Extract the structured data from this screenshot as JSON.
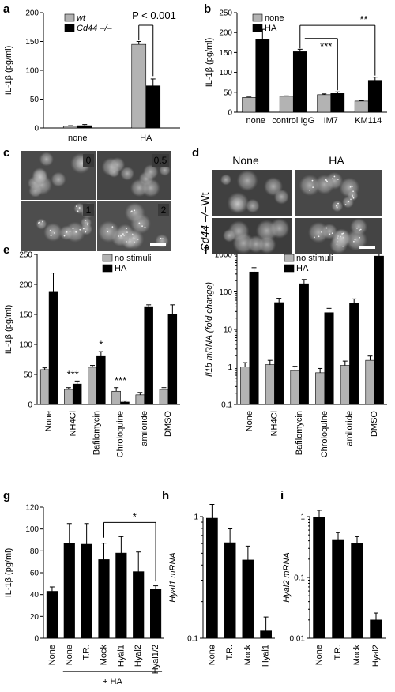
{
  "figure": {
    "panels": {
      "a": "a",
      "b": "b",
      "c": "c",
      "d": "d",
      "e": "e",
      "f": "f",
      "g": "g",
      "h": "h",
      "i": "i"
    }
  },
  "colors": {
    "gray": "#b3b3b3",
    "black": "#000000"
  },
  "chart_data": [
    {
      "panel": "a",
      "type": "bar",
      "categories": [
        "none",
        "HA"
      ],
      "series": [
        {
          "name": "wt",
          "values": [
            3,
            145
          ],
          "errors": [
            1,
            5
          ]
        },
        {
          "name": "Cd44 –/–",
          "values": [
            4,
            73
          ],
          "errors": [
            2,
            12
          ]
        }
      ],
      "ylabel": "IL-1β (pg/ml)",
      "ylim": [
        0,
        200
      ],
      "yticks": [
        "0",
        "50",
        "100",
        "150",
        "200"
      ],
      "annotation": "P < 0.001"
    },
    {
      "panel": "b",
      "type": "bar",
      "categories": [
        "none",
        "control IgG",
        "IM7",
        "KM114"
      ],
      "series": [
        {
          "name": "none",
          "values": [
            37,
            40,
            44,
            28
          ],
          "errors": [
            1,
            1,
            2,
            1
          ]
        },
        {
          "name": "HA",
          "values": [
            183,
            152,
            47,
            80
          ],
          "errors": [
            25,
            6,
            4,
            8
          ]
        }
      ],
      "ylabel": "IL-1β (pg/ml)",
      "ylim": [
        0,
        250
      ],
      "yticks": [
        "0",
        "50",
        "100",
        "150",
        "200",
        "250"
      ],
      "annotations": [
        "***",
        "**"
      ]
    },
    {
      "panel": "e",
      "type": "bar",
      "categories": [
        "None",
        "NH4Cl",
        "Bafilomycin",
        "Chroloquine",
        "amiloride",
        "DMSO"
      ],
      "series": [
        {
          "name": "no stimuli",
          "values": [
            58,
            25,
            62,
            22,
            16,
            25
          ],
          "errors": [
            3,
            3,
            3,
            6,
            4,
            3
          ]
        },
        {
          "name": "HA",
          "values": [
            187,
            34,
            80,
            4,
            163,
            150
          ],
          "errors": [
            32,
            5,
            8,
            2,
            3,
            16
          ]
        }
      ],
      "ylabel": "IL-1β (pg/ml)",
      "ylim": [
        0,
        250
      ],
      "yticks": [
        "0",
        "50",
        "100",
        "150",
        "200",
        "250"
      ],
      "annotations": [
        "***",
        "*",
        "***"
      ]
    },
    {
      "panel": "f",
      "type": "bar",
      "scale": "log",
      "categories": [
        "None",
        "NH4Cl",
        "Bafilomycin",
        "Chroloquine",
        "amiloride",
        "DMSO"
      ],
      "series": [
        {
          "name": "no stimuli",
          "values": [
            1.0,
            1.15,
            0.8,
            0.7,
            1.1,
            1.5
          ]
        },
        {
          "name": "HA",
          "values": [
            340,
            52,
            165,
            28,
            50,
            900
          ]
        }
      ],
      "ylabel": "Il1b mRNA (fold change)",
      "ylim": [
        0.1,
        1000
      ],
      "yticks": [
        "0.1",
        "1",
        "10",
        "100",
        "1000"
      ]
    },
    {
      "panel": "g",
      "type": "bar",
      "categories": [
        "None",
        "None",
        "T.R.",
        "Mock",
        "Hyal1",
        "Hyal2",
        "Hyal1/2"
      ],
      "series": [
        {
          "values": [
            43,
            87,
            86,
            72,
            78,
            61,
            45
          ],
          "errors": [
            4,
            18,
            19,
            15,
            15,
            18,
            3
          ]
        }
      ],
      "ylabel": "IL-1β (pg/ml)",
      "ylim": [
        0,
        120
      ],
      "yticks": [
        "0",
        "20",
        "40",
        "60",
        "80",
        "100",
        "120"
      ],
      "group_label": "+ HA",
      "annotation": "*"
    },
    {
      "panel": "h",
      "type": "bar",
      "scale": "log",
      "categories": [
        "None",
        "T.R.",
        "Mock",
        "Hyal1"
      ],
      "series": [
        {
          "values": [
            0.97,
            0.61,
            0.44,
            0.115
          ]
        }
      ],
      "ylabel": "Hyal1 mRNA",
      "ylim": [
        0.1,
        1
      ],
      "yticks": [
        "0.1",
        "1"
      ]
    },
    {
      "panel": "i",
      "type": "bar",
      "scale": "log",
      "categories": [
        "None",
        "T.R.",
        "Mock",
        "Hyal2"
      ],
      "series": [
        {
          "values": [
            0.98,
            0.42,
            0.36,
            0.02
          ]
        }
      ],
      "ylabel": "Hyal2 mRNA",
      "ylim": [
        0.01,
        1
      ],
      "yticks": [
        "0.01",
        "0.1",
        "1"
      ]
    }
  ],
  "micrographs": {
    "c": {
      "labels": [
        "0",
        "0.5",
        "1",
        "2"
      ]
    },
    "d": {
      "columns": [
        "None",
        "HA"
      ],
      "rows": [
        "Wt",
        "Cd44 –/–"
      ]
    }
  }
}
